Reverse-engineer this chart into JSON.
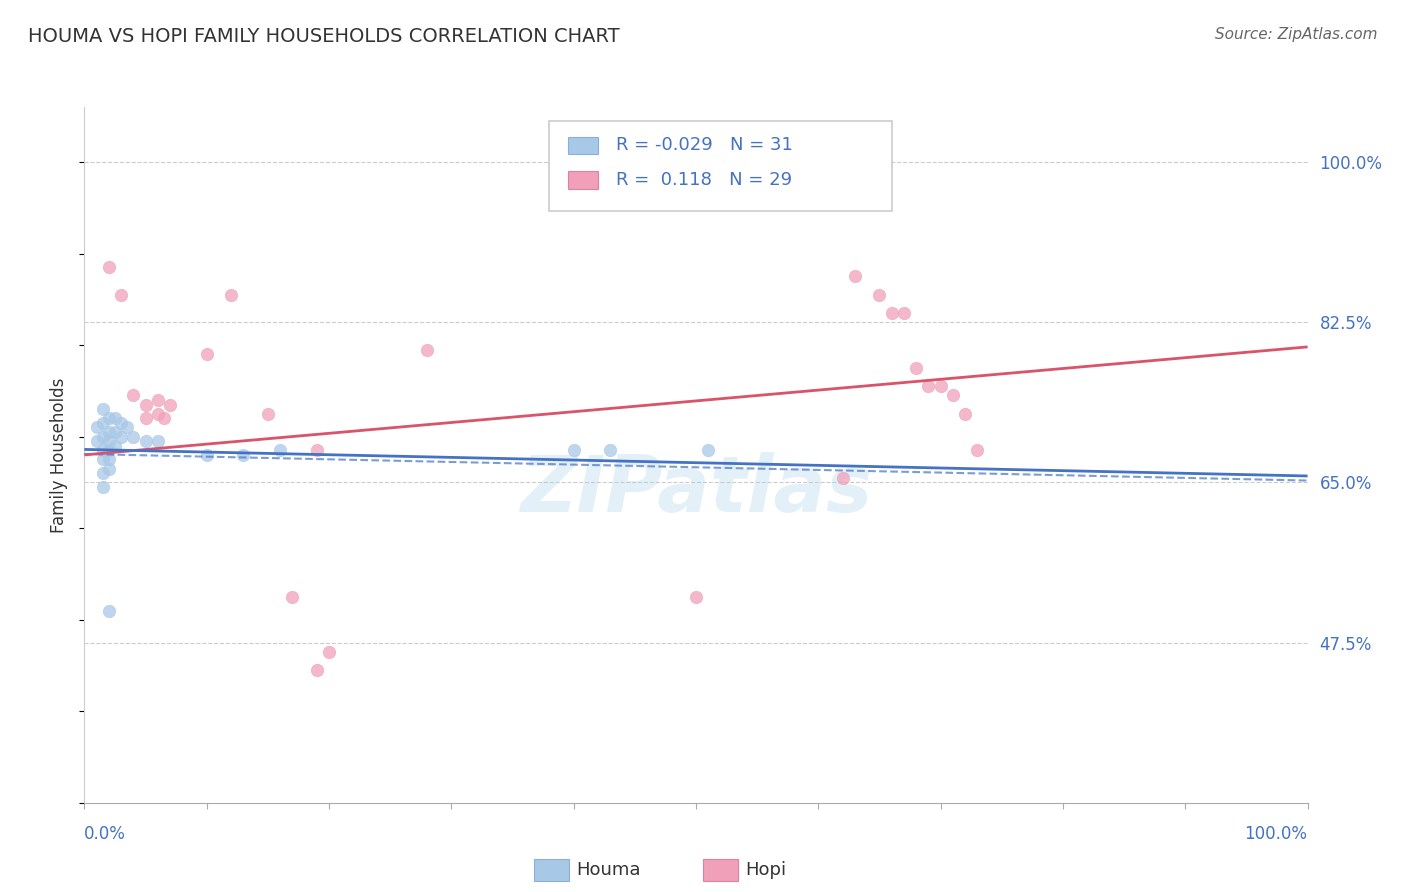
{
  "title": "HOUMA VS HOPI FAMILY HOUSEHOLDS CORRELATION CHART",
  "source": "Source: ZipAtlas.com",
  "ylabel": "Family Households",
  "xlim": [
    0.0,
    1.0
  ],
  "ylim": [
    0.3,
    1.06
  ],
  "yticks": [
    0.475,
    0.65,
    0.825,
    1.0
  ],
  "ytick_labels": [
    "47.5%",
    "65.0%",
    "82.5%",
    "100.0%"
  ],
  "legend_box": {
    "houma_r": "-0.029",
    "houma_n": "31",
    "hopi_r": " 0.118",
    "hopi_n": "29"
  },
  "houma_color": "#a8c8e8",
  "hopi_color": "#f0a0b8",
  "houma_line_color": "#4472c4",
  "hopi_line_color": "#d9536a",
  "watermark": "ZIPatlas",
  "houma_points": [
    [
      0.01,
      0.71
    ],
    [
      0.01,
      0.695
    ],
    [
      0.015,
      0.73
    ],
    [
      0.015,
      0.715
    ],
    [
      0.015,
      0.7
    ],
    [
      0.015,
      0.685
    ],
    [
      0.015,
      0.675
    ],
    [
      0.015,
      0.66
    ],
    [
      0.015,
      0.645
    ],
    [
      0.02,
      0.72
    ],
    [
      0.02,
      0.705
    ],
    [
      0.02,
      0.695
    ],
    [
      0.02,
      0.685
    ],
    [
      0.02,
      0.675
    ],
    [
      0.02,
      0.665
    ],
    [
      0.025,
      0.72
    ],
    [
      0.025,
      0.705
    ],
    [
      0.025,
      0.69
    ],
    [
      0.03,
      0.715
    ],
    [
      0.03,
      0.7
    ],
    [
      0.035,
      0.71
    ],
    [
      0.04,
      0.7
    ],
    [
      0.05,
      0.695
    ],
    [
      0.06,
      0.695
    ],
    [
      0.1,
      0.68
    ],
    [
      0.13,
      0.68
    ],
    [
      0.16,
      0.685
    ],
    [
      0.02,
      0.51
    ],
    [
      0.4,
      0.685
    ],
    [
      0.43,
      0.685
    ],
    [
      0.51,
      0.685
    ]
  ],
  "hopi_points": [
    [
      0.02,
      0.885
    ],
    [
      0.03,
      0.855
    ],
    [
      0.04,
      0.745
    ],
    [
      0.05,
      0.735
    ],
    [
      0.05,
      0.72
    ],
    [
      0.06,
      0.74
    ],
    [
      0.06,
      0.725
    ],
    [
      0.065,
      0.72
    ],
    [
      0.07,
      0.735
    ],
    [
      0.1,
      0.79
    ],
    [
      0.12,
      0.855
    ],
    [
      0.15,
      0.725
    ],
    [
      0.28,
      0.795
    ],
    [
      0.63,
      0.875
    ],
    [
      0.65,
      0.855
    ],
    [
      0.66,
      0.835
    ],
    [
      0.67,
      0.835
    ],
    [
      0.68,
      0.775
    ],
    [
      0.69,
      0.755
    ],
    [
      0.7,
      0.755
    ],
    [
      0.71,
      0.745
    ],
    [
      0.72,
      0.725
    ],
    [
      0.73,
      0.685
    ],
    [
      0.17,
      0.525
    ],
    [
      0.19,
      0.445
    ],
    [
      0.2,
      0.465
    ],
    [
      0.5,
      0.525
    ],
    [
      0.19,
      0.685
    ],
    [
      0.62,
      0.655
    ]
  ],
  "houma_regression": {
    "slope": -0.029,
    "intercept": 0.686
  },
  "hopi_regression": {
    "slope": 0.118,
    "intercept": 0.68
  },
  "houma_dashed": true
}
